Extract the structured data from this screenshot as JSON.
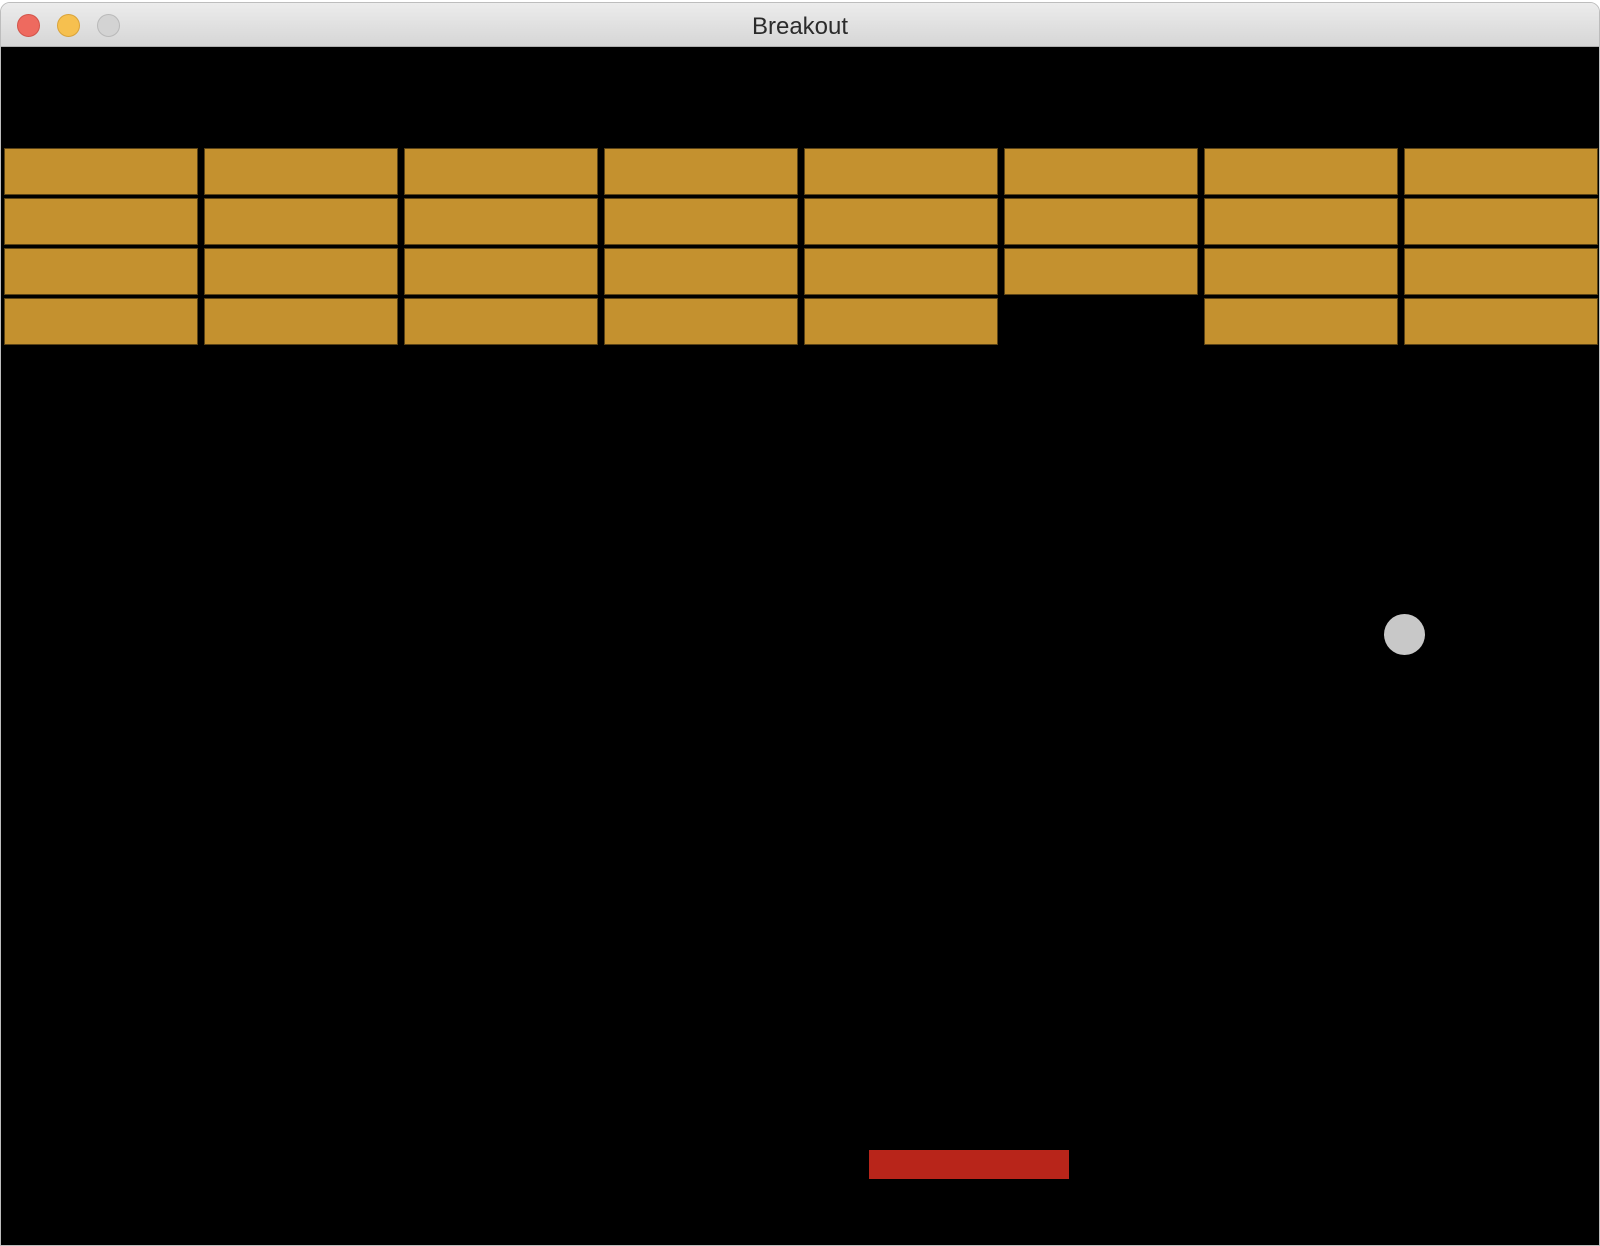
{
  "window": {
    "title": "Breakout"
  },
  "colors": {
    "brick": "#c4912f",
    "paddle": "#b8251a",
    "ball": "#c8c8c8",
    "background": "#000000"
  },
  "bricks": {
    "rows": 4,
    "cols": 8,
    "present": [
      [
        1,
        1,
        1,
        1,
        1,
        1,
        1,
        1
      ],
      [
        1,
        1,
        1,
        1,
        1,
        1,
        1,
        1
      ],
      [
        1,
        1,
        1,
        1,
        1,
        1,
        1,
        1
      ],
      [
        1,
        1,
        1,
        1,
        1,
        0,
        1,
        1
      ]
    ]
  }
}
